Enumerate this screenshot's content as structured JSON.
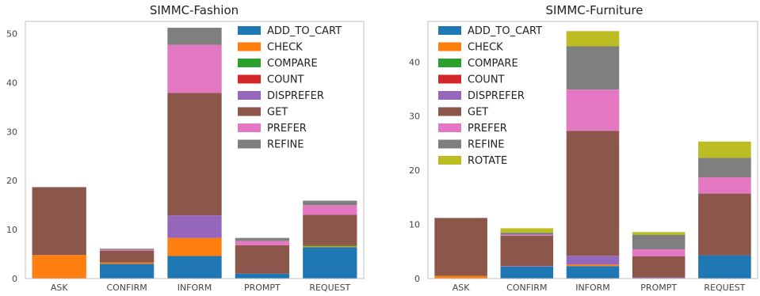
{
  "colors": {
    "ADD_TO_CART": "#1f77b4",
    "CHECK": "#ff7f0e",
    "COMPARE": "#2ca02c",
    "COUNT": "#d62728",
    "DISPREFER": "#9467bd",
    "GET": "#8c564b",
    "PREFER": "#e377c2",
    "REFINE": "#7f7f7f",
    "ROTATE": "#bcbd22"
  },
  "chart_data": [
    {
      "type": "bar",
      "stacked": true,
      "title": "SIMMC-Fashion",
      "xlabel": "",
      "ylabel": "",
      "categories": [
        "ASK",
        "CONFIRM",
        "INFORM",
        "PROMPT",
        "REQUEST"
      ],
      "ylim": [
        0,
        52.5
      ],
      "yticks": [
        0,
        10,
        20,
        30,
        40,
        50
      ],
      "grid": false,
      "legend": "top-right",
      "series": [
        {
          "name": "ADD_TO_CART",
          "values": [
            0,
            3.0,
            4.6,
            1.0,
            6.4
          ]
        },
        {
          "name": "CHECK",
          "values": [
            4.8,
            0.3,
            3.7,
            0,
            0.2
          ]
        },
        {
          "name": "COMPARE",
          "values": [
            0,
            0,
            0,
            0,
            0.2
          ]
        },
        {
          "name": "COUNT",
          "values": [
            0,
            0,
            0,
            0,
            0
          ]
        },
        {
          "name": "DISPREFER",
          "values": [
            0,
            0,
            4.6,
            0,
            0
          ]
        },
        {
          "name": "GET",
          "values": [
            13.8,
            2.4,
            25.0,
            5.8,
            6.2
          ]
        },
        {
          "name": "PREFER",
          "values": [
            0,
            0.2,
            9.8,
            0.9,
            2.0
          ]
        },
        {
          "name": "REFINE",
          "values": [
            0.1,
            0.2,
            3.5,
            0.6,
            0.9
          ]
        }
      ]
    },
    {
      "type": "bar",
      "stacked": true,
      "title": "SIMMC-Furniture",
      "xlabel": "",
      "ylabel": "",
      "categories": [
        "ASK",
        "CONFIRM",
        "INFORM",
        "PROMPT",
        "REQUEST"
      ],
      "ylim": [
        0,
        47.5
      ],
      "yticks": [
        0,
        10,
        20,
        30,
        40
      ],
      "grid": false,
      "legend": "top-left",
      "series": [
        {
          "name": "ADD_TO_CART",
          "values": [
            0,
            2.2,
            2.3,
            0,
            4.3
          ]
        },
        {
          "name": "CHECK",
          "values": [
            0.5,
            0,
            0.3,
            0,
            0
          ]
        },
        {
          "name": "COMPARE",
          "values": [
            0,
            0,
            0,
            0,
            0
          ]
        },
        {
          "name": "COUNT",
          "values": [
            0,
            0,
            0,
            0,
            0
          ]
        },
        {
          "name": "DISPREFER",
          "values": [
            0,
            0.1,
            1.6,
            0.2,
            0
          ]
        },
        {
          "name": "GET",
          "values": [
            10.7,
            5.6,
            23.1,
            3.9,
            11.4
          ]
        },
        {
          "name": "PREFER",
          "values": [
            0,
            0.2,
            7.6,
            1.3,
            3.0
          ]
        },
        {
          "name": "REFINE",
          "values": [
            0,
            0.4,
            8.0,
            2.7,
            3.6
          ]
        },
        {
          "name": "ROTATE",
          "values": [
            0,
            0.8,
            2.8,
            0.5,
            3.0
          ]
        }
      ]
    }
  ]
}
